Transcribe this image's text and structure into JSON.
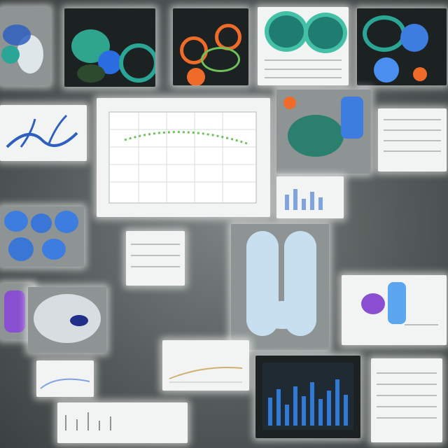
{
  "collage": {
    "palette": {
      "background": "#5f6664",
      "panel_dark": "#1c2122",
      "panel_light": "#f2f4f3",
      "blue": "#3d7de0",
      "teal": "#2aa596",
      "orange": "#f06a2a",
      "purple": "#8a4fd0",
      "green": "#6fc25b"
    },
    "tiles": [
      "coral-sculpture",
      "blue-teal-cells",
      "orange-ring-drawing",
      "teal-spiral-shapes",
      "blue-sphere-drawing",
      "blue-coral-photo",
      "center-line-chart",
      "teal-arm-sculpture",
      "notes-page",
      "bar-chart-dark",
      "bone-sculpture"
    ]
  }
}
